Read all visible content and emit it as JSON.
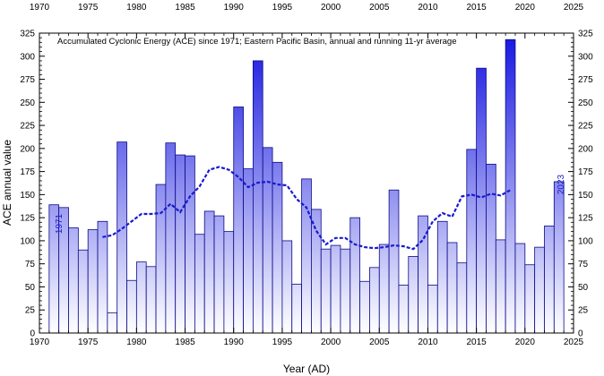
{
  "chart_data": {
    "type": "bar",
    "title": "Accumulated Cyclonic Energy (ACE) since 1971; Eastern Pacific Basin, annual and running 11-yr average",
    "xlabel": "Year (AD)",
    "ylabel": "ACE annual value",
    "xlim": [
      1970,
      2025
    ],
    "ylim": [
      0,
      325
    ],
    "x_ticks": [
      1970,
      1975,
      1980,
      1985,
      1990,
      1995,
      2000,
      2005,
      2010,
      2015,
      2020,
      2025
    ],
    "y_ticks": [
      0,
      25,
      50,
      75,
      100,
      125,
      150,
      175,
      200,
      225,
      250,
      275,
      300,
      325
    ],
    "start_label": "1971",
    "end_label": "2023",
    "colors": {
      "bar_top": "#1010e0",
      "bar_bottom": "#ffffff",
      "line": "#1a1ad0",
      "bar_edge": "#0a0a8a"
    },
    "series": [
      {
        "type": "bar",
        "x": [
          1971,
          1972,
          1973,
          1974,
          1975,
          1976,
          1977,
          1978,
          1979,
          1980,
          1981,
          1982,
          1983,
          1984,
          1985,
          1986,
          1987,
          1988,
          1989,
          1990,
          1991,
          1992,
          1993,
          1994,
          1995,
          1996,
          1997,
          1998,
          1999,
          2000,
          2001,
          2002,
          2003,
          2004,
          2005,
          2006,
          2007,
          2008,
          2009,
          2010,
          2011,
          2012,
          2013,
          2014,
          2015,
          2016,
          2017,
          2018,
          2019,
          2020,
          2021,
          2022,
          2023
        ],
        "values": [
          139,
          136,
          114,
          90,
          112,
          121,
          22,
          207,
          57,
          77,
          72,
          161,
          206,
          193,
          192,
          107,
          132,
          127,
          110,
          245,
          178,
          295,
          201,
          185,
          100,
          53,
          167,
          134,
          91,
          95,
          91,
          125,
          56,
          71,
          96,
          155,
          52,
          83,
          127,
          52,
          121,
          98,
          76,
          199,
          287,
          183,
          101,
          318,
          97,
          74,
          93,
          116,
          164
        ]
      },
      {
        "type": "line",
        "x": [
          1976,
          1977,
          1978,
          1979,
          1980,
          1981,
          1982,
          1983,
          1984,
          1985,
          1986,
          1987,
          1988,
          1989,
          1990,
          1991,
          1992,
          1993,
          1994,
          1995,
          1996,
          1997,
          1998,
          1999,
          2000,
          2001,
          2002,
          2003,
          2004,
          2005,
          2006,
          2007,
          2008,
          2009,
          2010,
          2011,
          2012,
          2013,
          2014,
          2015,
          2016,
          2017,
          2018
        ],
        "values": [
          104,
          106,
          113,
          121,
          129,
          129,
          130,
          140,
          131,
          148,
          159,
          177,
          180,
          177,
          169,
          158,
          163,
          164,
          161,
          160,
          145,
          136,
          111,
          96,
          103,
          103,
          96,
          93,
          92,
          93,
          95,
          94,
          91,
          101,
          121,
          130,
          126,
          148,
          150,
          147,
          151,
          149,
          155
        ]
      }
    ]
  }
}
